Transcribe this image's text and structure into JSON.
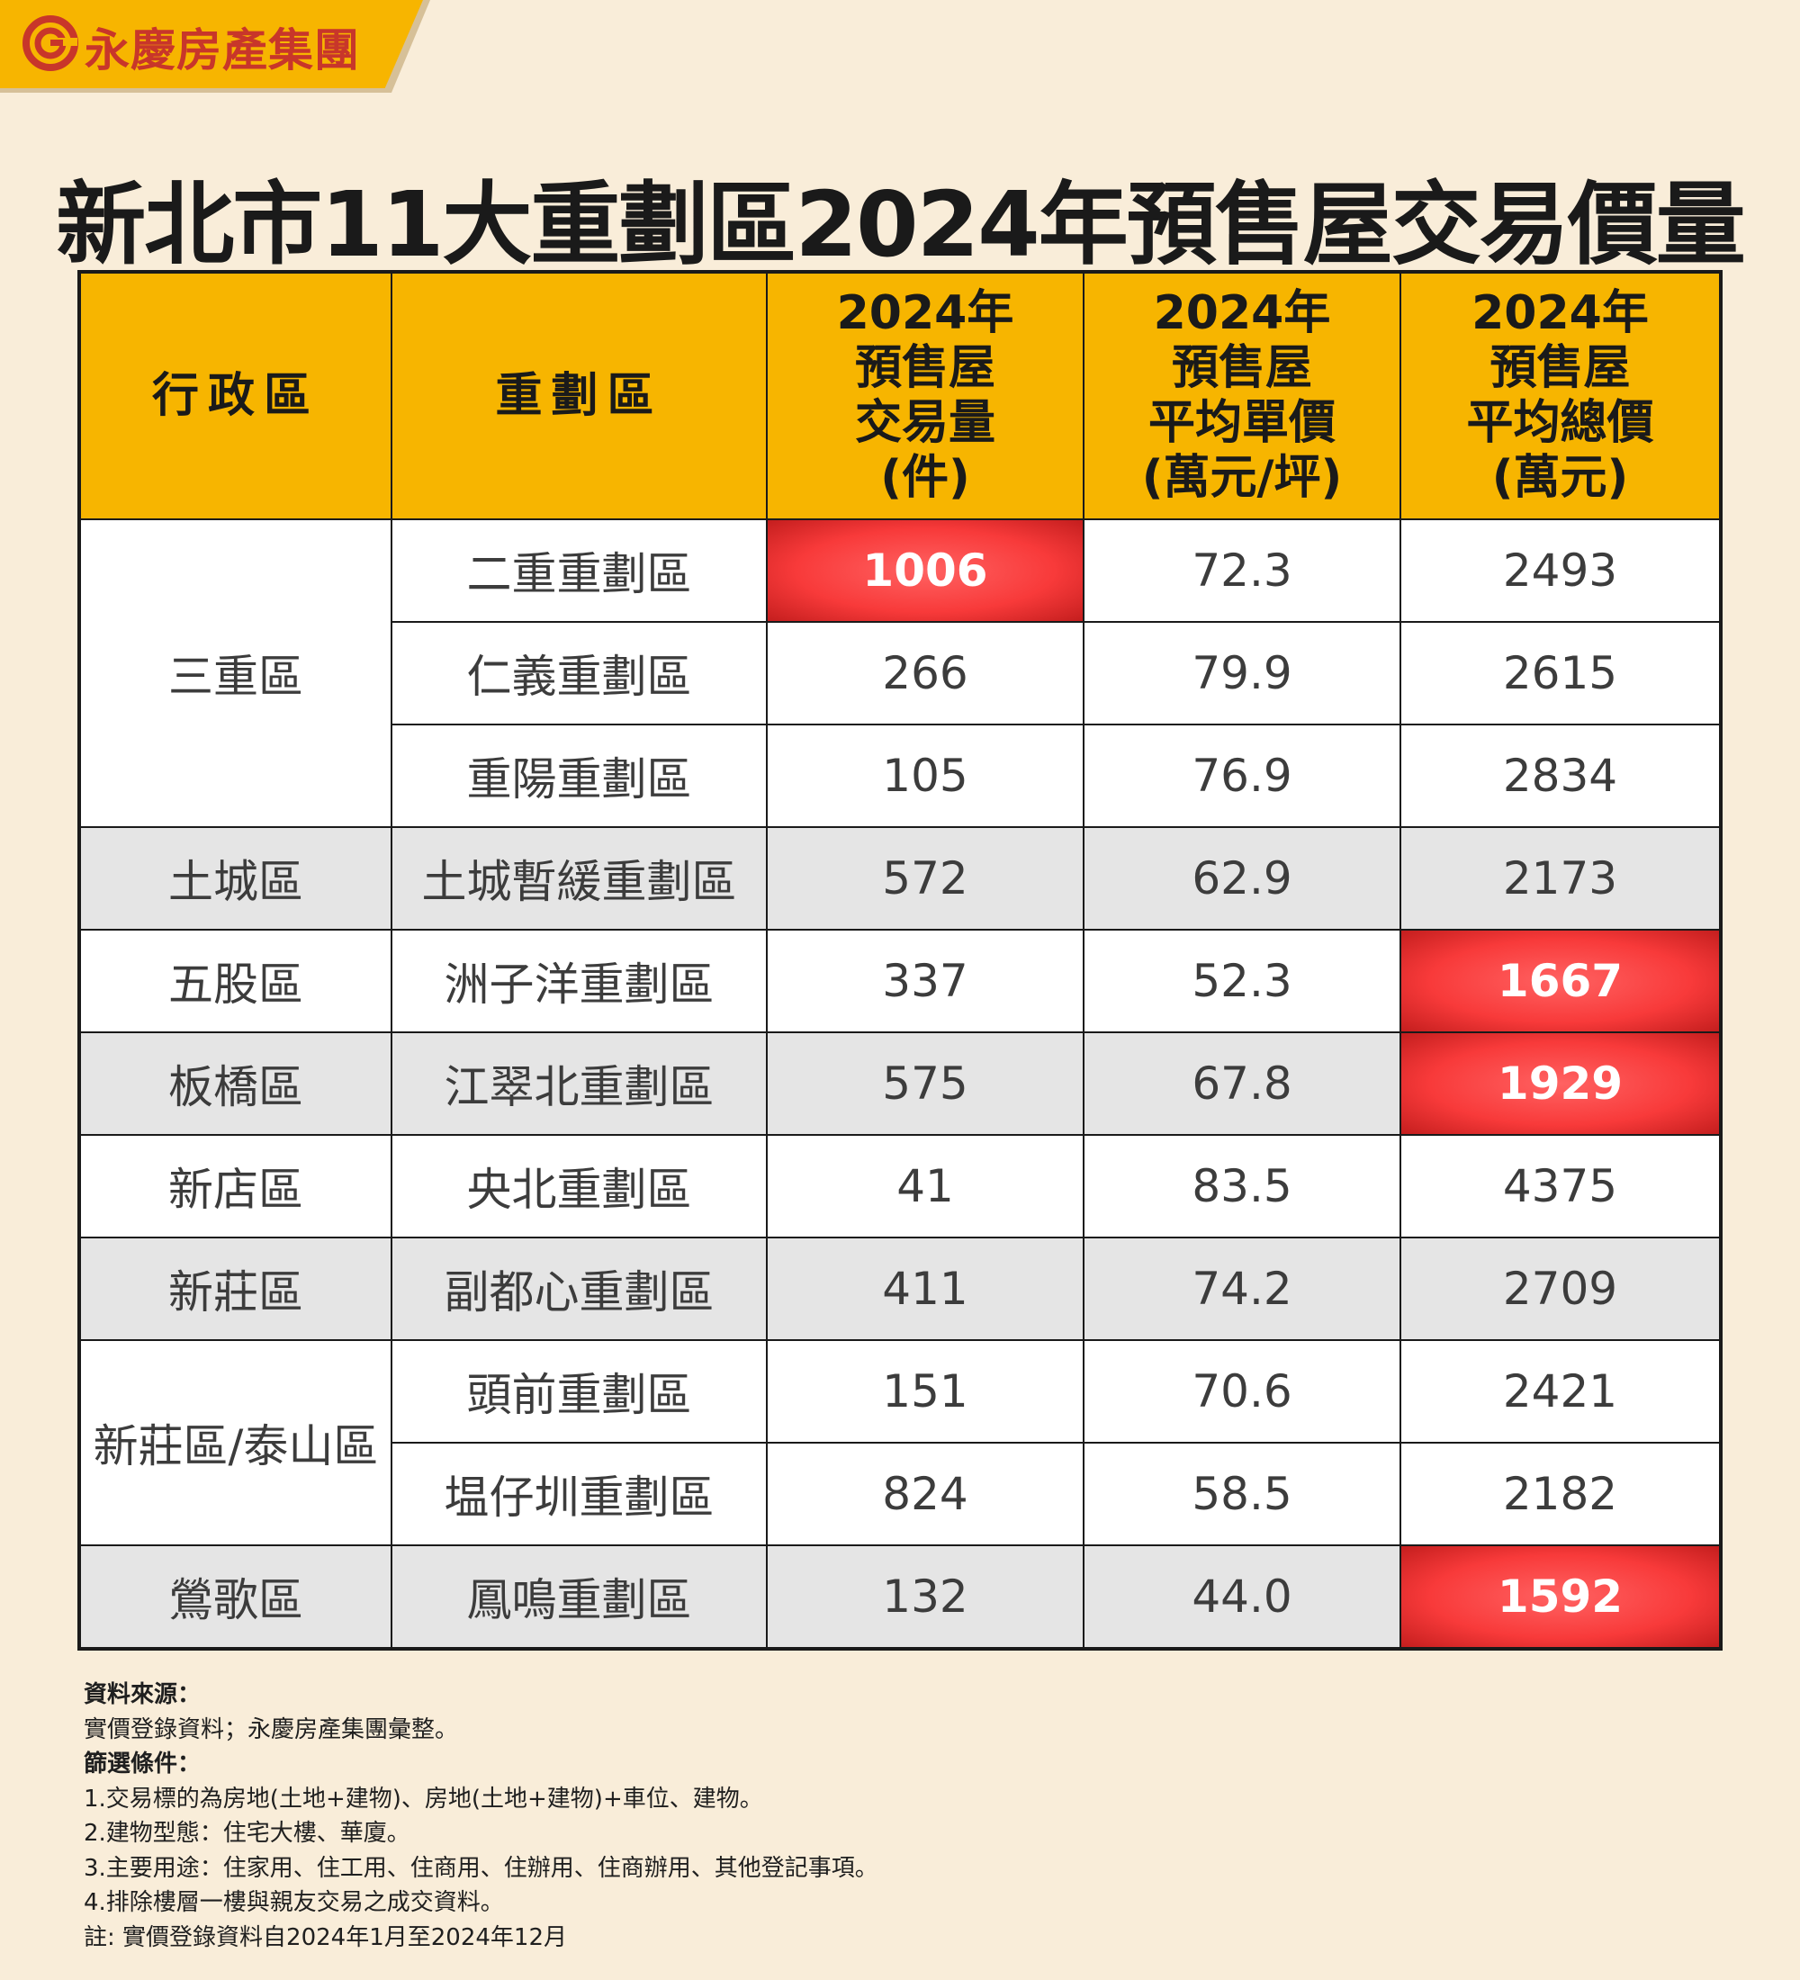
{
  "brand": {
    "name": "永慶房產集團",
    "accent": "#c8362a",
    "bar_color": "#f7b500"
  },
  "title": "新北市11大重劃區2024年預售屋交易價量",
  "table": {
    "headers": [
      [
        "行政區"
      ],
      [
        "重劃區"
      ],
      [
        "2024年",
        "預售屋",
        "交易量",
        "(件)"
      ],
      [
        "2024年",
        "預售屋",
        "平均單價",
        "(萬元/坪)"
      ],
      [
        "2024年",
        "預售屋",
        "平均總價",
        "(萬元)"
      ]
    ],
    "rows": [
      {
        "district": "三重區",
        "zone": "二重重劃區",
        "volume": "1006",
        "unit_price": "72.3",
        "total_price": "2493"
      },
      {
        "district": "三重區",
        "zone": "仁義重劃區",
        "volume": "266",
        "unit_price": "79.9",
        "total_price": "2615"
      },
      {
        "district": "三重區",
        "zone": "重陽重劃區",
        "volume": "105",
        "unit_price": "76.9",
        "total_price": "2834"
      },
      {
        "district": "土城區",
        "zone": "土城暫緩重劃區",
        "volume": "572",
        "unit_price": "62.9",
        "total_price": "2173"
      },
      {
        "district": "五股區",
        "zone": "洲子洋重劃區",
        "volume": "337",
        "unit_price": "52.3",
        "total_price": "1667"
      },
      {
        "district": "板橋區",
        "zone": "江翠北重劃區",
        "volume": "575",
        "unit_price": "67.8",
        "total_price": "1929"
      },
      {
        "district": "新店區",
        "zone": "央北重劃區",
        "volume": "41",
        "unit_price": "83.5",
        "total_price": "4375"
      },
      {
        "district": "新莊區",
        "zone": "副都心重劃區",
        "volume": "411",
        "unit_price": "74.2",
        "total_price": "2709"
      },
      {
        "district": "新莊區/泰山區",
        "zone": "頭前重劃區",
        "volume": "151",
        "unit_price": "70.6",
        "total_price": "2421"
      },
      {
        "district": "新莊區/泰山區",
        "zone": "塭仔圳重劃區",
        "volume": "824",
        "unit_price": "58.5",
        "total_price": "2182"
      },
      {
        "district": "鶯歌區",
        "zone": "鳳鳴重劃區",
        "volume": "132",
        "unit_price": "44.0",
        "total_price": "1592"
      }
    ],
    "highlight_color": "#f83a3a"
  },
  "notes": {
    "source_label": "資料來源：",
    "source_text": "實價登錄資料；永慶房產集團彙整。",
    "criteria_label": "篩選條件：",
    "criteria": [
      "1.交易標的為房地(土地+建物)、房地(土地+建物)+車位、建物。",
      "2.建物型態：住宅大樓、華廈。",
      "3.主要用途：住家用、住工用、住商用、住辦用、住商辦用、其他登記事項。",
      "4.排除樓層一樓與親友交易之成交資料。"
    ],
    "footnote": "註: 實價登錄資料自2024年1月至2024年12月"
  }
}
